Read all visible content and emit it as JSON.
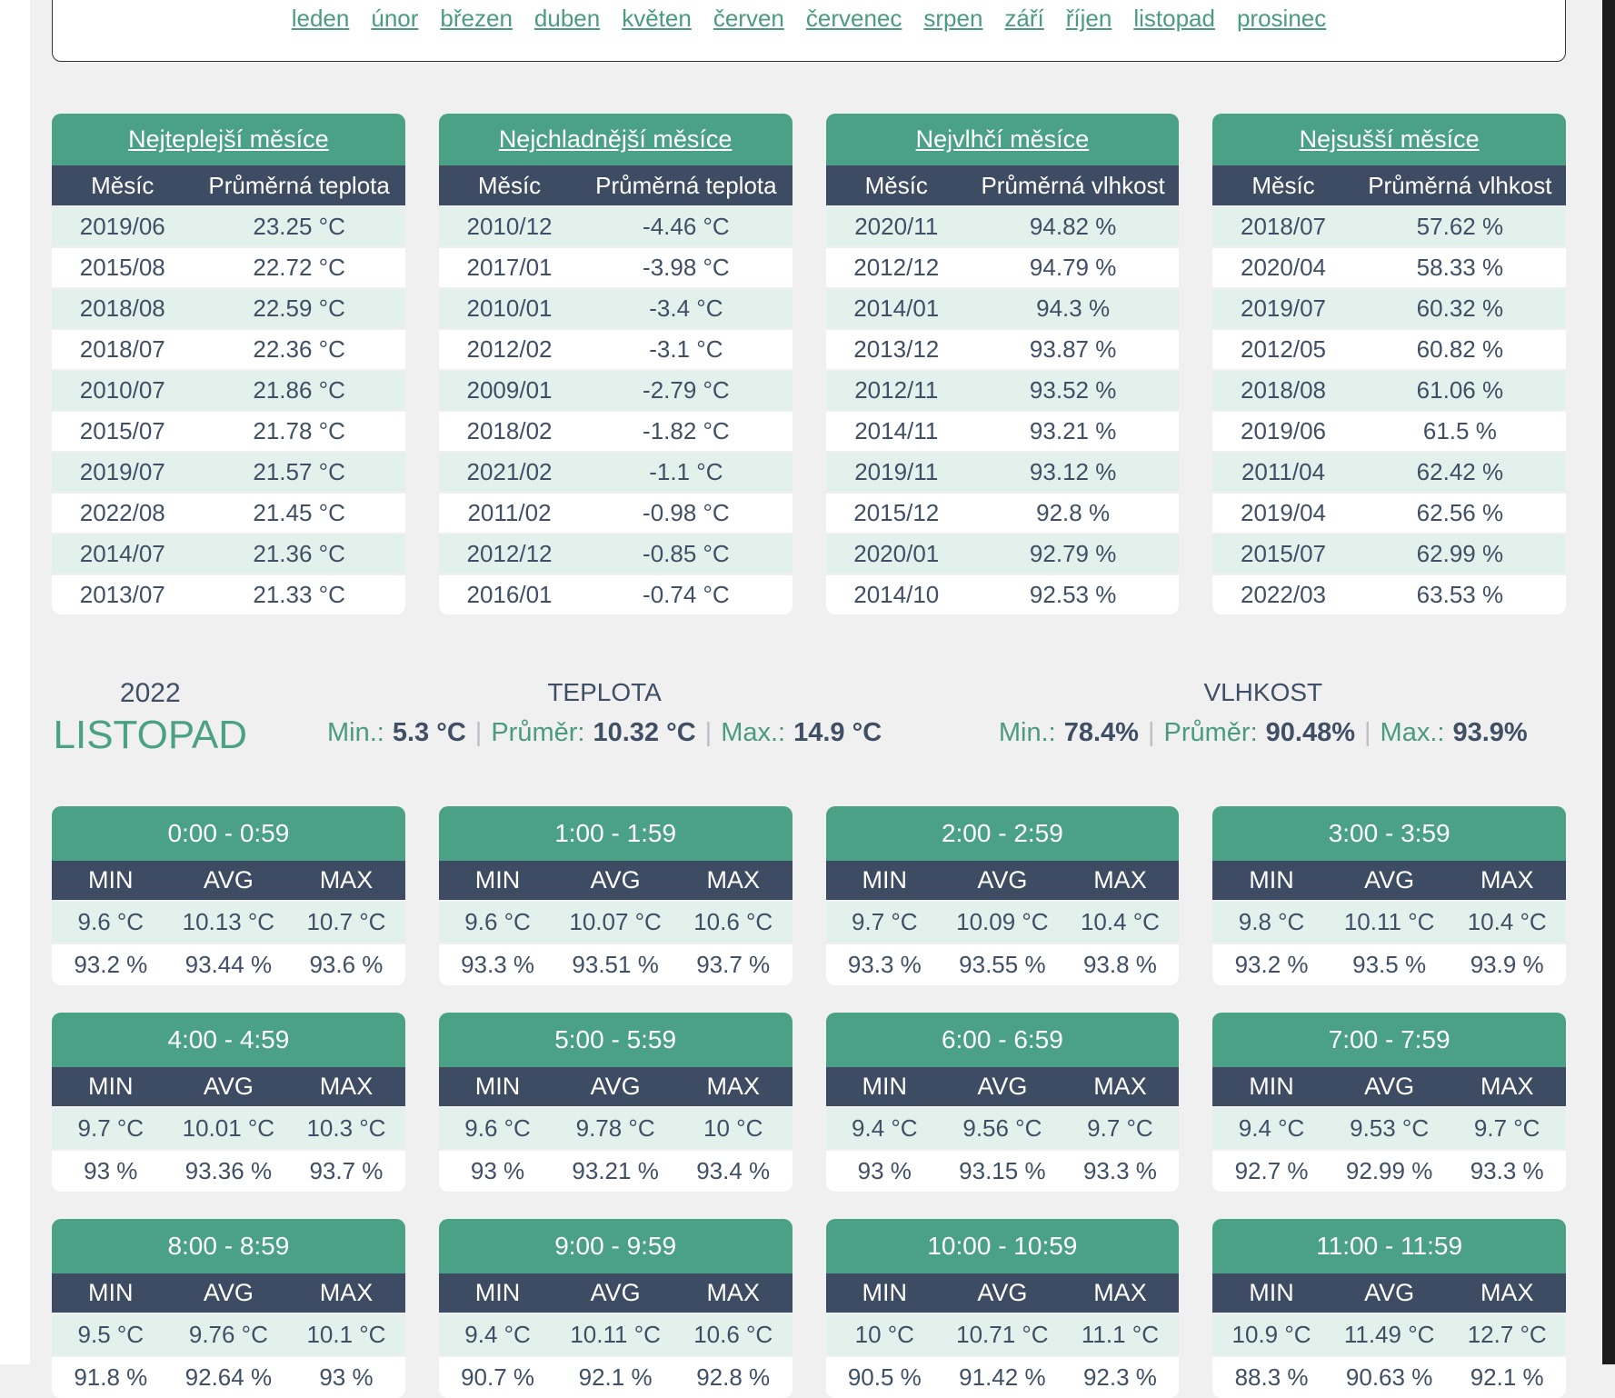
{
  "colors": {
    "accent_green": "#4aa186",
    "link_green": "#4a9b80",
    "header_navy": "#3d4c62",
    "row_mint": "#e3f1ec",
    "page_bg": "#f0f0f0",
    "text": "#3f4f66"
  },
  "nav": {
    "months": [
      "leden",
      "únor",
      "březen",
      "duben",
      "květen",
      "červen",
      "červenec",
      "srpen",
      "září",
      "říjen",
      "listopad",
      "prosinec"
    ]
  },
  "top_tables": [
    {
      "title": "Nejteplejší měsíce",
      "col_month": "Měsíc",
      "col_value": "Průměrná teplota",
      "rows": [
        {
          "month": "2019/06",
          "value": "23.25 °C"
        },
        {
          "month": "2015/08",
          "value": "22.72 °C"
        },
        {
          "month": "2018/08",
          "value": "22.59 °C"
        },
        {
          "month": "2018/07",
          "value": "22.36 °C"
        },
        {
          "month": "2010/07",
          "value": "21.86 °C"
        },
        {
          "month": "2015/07",
          "value": "21.78 °C"
        },
        {
          "month": "2019/07",
          "value": "21.57 °C"
        },
        {
          "month": "2022/08",
          "value": "21.45 °C"
        },
        {
          "month": "2014/07",
          "value": "21.36 °C"
        },
        {
          "month": "2013/07",
          "value": "21.33 °C"
        }
      ]
    },
    {
      "title": "Nejchladnější měsíce",
      "col_month": "Měsíc",
      "col_value": "Průměrná teplota",
      "rows": [
        {
          "month": "2010/12",
          "value": "-4.46 °C"
        },
        {
          "month": "2017/01",
          "value": "-3.98 °C"
        },
        {
          "month": "2010/01",
          "value": "-3.4 °C"
        },
        {
          "month": "2012/02",
          "value": "-3.1 °C"
        },
        {
          "month": "2009/01",
          "value": "-2.79 °C"
        },
        {
          "month": "2018/02",
          "value": "-1.82 °C"
        },
        {
          "month": "2021/02",
          "value": "-1.1 °C"
        },
        {
          "month": "2011/02",
          "value": "-0.98 °C"
        },
        {
          "month": "2012/12",
          "value": "-0.85 °C"
        },
        {
          "month": "2016/01",
          "value": "-0.74 °C"
        }
      ]
    },
    {
      "title": "Nejvlhčí měsíce",
      "col_month": "Měsíc",
      "col_value": "Průměrná vlhkost",
      "rows": [
        {
          "month": "2020/11",
          "value": "94.82 %"
        },
        {
          "month": "2012/12",
          "value": "94.79 %"
        },
        {
          "month": "2014/01",
          "value": "94.3 %"
        },
        {
          "month": "2013/12",
          "value": "93.87 %"
        },
        {
          "month": "2012/11",
          "value": "93.52 %"
        },
        {
          "month": "2014/11",
          "value": "93.21 %"
        },
        {
          "month": "2019/11",
          "value": "93.12 %"
        },
        {
          "month": "2015/12",
          "value": "92.8 %"
        },
        {
          "month": "2020/01",
          "value": "92.79 %"
        },
        {
          "month": "2014/10",
          "value": "92.53 %"
        }
      ]
    },
    {
      "title": "Nejsušší měsíce",
      "col_month": "Měsíc",
      "col_value": "Průměrná vlhkost",
      "rows": [
        {
          "month": "2018/07",
          "value": "57.62 %"
        },
        {
          "month": "2020/04",
          "value": "58.33 %"
        },
        {
          "month": "2019/07",
          "value": "60.32 %"
        },
        {
          "month": "2012/05",
          "value": "60.82 %"
        },
        {
          "month": "2018/08",
          "value": "61.06 %"
        },
        {
          "month": "2019/06",
          "value": "61.5 %"
        },
        {
          "month": "2011/04",
          "value": "62.42 %"
        },
        {
          "month": "2019/04",
          "value": "62.56 %"
        },
        {
          "month": "2015/07",
          "value": "62.99 %"
        },
        {
          "month": "2022/03",
          "value": "63.53 %"
        }
      ]
    }
  ],
  "summary": {
    "year": "2022",
    "month": "LISTOPAD",
    "separator": "|",
    "temperature": {
      "title": "TEPLOTA",
      "min_label": "Min.:",
      "min": "5.3 °C",
      "avg_label": "Průměr:",
      "avg": "10.32 °C",
      "max_label": "Max.:",
      "max": "14.9 °C"
    },
    "humidity": {
      "title": "VLHKOST",
      "min_label": "Min.:",
      "min": "78.4%",
      "avg_label": "Průměr:",
      "avg": "90.48%",
      "max_label": "Max.:",
      "max": "93.9%"
    }
  },
  "hour_cards": {
    "col_headers": [
      "MIN",
      "AVG",
      "MAX"
    ],
    "cards": [
      {
        "time": "0:00 - 0:59",
        "temp": [
          "9.6 °C",
          "10.13 °C",
          "10.7 °C"
        ],
        "hum": [
          "93.2 %",
          "93.44 %",
          "93.6 %"
        ]
      },
      {
        "time": "1:00 - 1:59",
        "temp": [
          "9.6 °C",
          "10.07 °C",
          "10.6 °C"
        ],
        "hum": [
          "93.3 %",
          "93.51 %",
          "93.7 %"
        ]
      },
      {
        "time": "2:00 - 2:59",
        "temp": [
          "9.7 °C",
          "10.09 °C",
          "10.4 °C"
        ],
        "hum": [
          "93.3 %",
          "93.55 %",
          "93.8 %"
        ]
      },
      {
        "time": "3:00 - 3:59",
        "temp": [
          "9.8 °C",
          "10.11 °C",
          "10.4 °C"
        ],
        "hum": [
          "93.2 %",
          "93.5 %",
          "93.9 %"
        ]
      },
      {
        "time": "4:00 - 4:59",
        "temp": [
          "9.7 °C",
          "10.01 °C",
          "10.3 °C"
        ],
        "hum": [
          "93 %",
          "93.36 %",
          "93.7 %"
        ]
      },
      {
        "time": "5:00 - 5:59",
        "temp": [
          "9.6 °C",
          "9.78 °C",
          "10 °C"
        ],
        "hum": [
          "93 %",
          "93.21 %",
          "93.4 %"
        ]
      },
      {
        "time": "6:00 - 6:59",
        "temp": [
          "9.4 °C",
          "9.56 °C",
          "9.7 °C"
        ],
        "hum": [
          "93 %",
          "93.15 %",
          "93.3 %"
        ]
      },
      {
        "time": "7:00 - 7:59",
        "temp": [
          "9.4 °C",
          "9.53 °C",
          "9.7 °C"
        ],
        "hum": [
          "92.7 %",
          "92.99 %",
          "93.3 %"
        ]
      },
      {
        "time": "8:00 - 8:59",
        "temp": [
          "9.5 °C",
          "9.76 °C",
          "10.1 °C"
        ],
        "hum": [
          "91.8 %",
          "92.64 %",
          "93 %"
        ]
      },
      {
        "time": "9:00 - 9:59",
        "temp": [
          "9.4 °C",
          "10.11 °C",
          "10.6 °C"
        ],
        "hum": [
          "90.7 %",
          "92.1 %",
          "92.8 %"
        ]
      },
      {
        "time": "10:00 - 10:59",
        "temp": [
          "10 °C",
          "10.71 °C",
          "11.1 °C"
        ],
        "hum": [
          "90.5 %",
          "91.42 %",
          "92.3 %"
        ]
      },
      {
        "time": "11:00 - 11:59",
        "temp": [
          "10.9 °C",
          "11.49 °C",
          "12.7 °C"
        ],
        "hum": [
          "88.3 %",
          "90.63 %",
          "92.1 %"
        ]
      }
    ]
  }
}
